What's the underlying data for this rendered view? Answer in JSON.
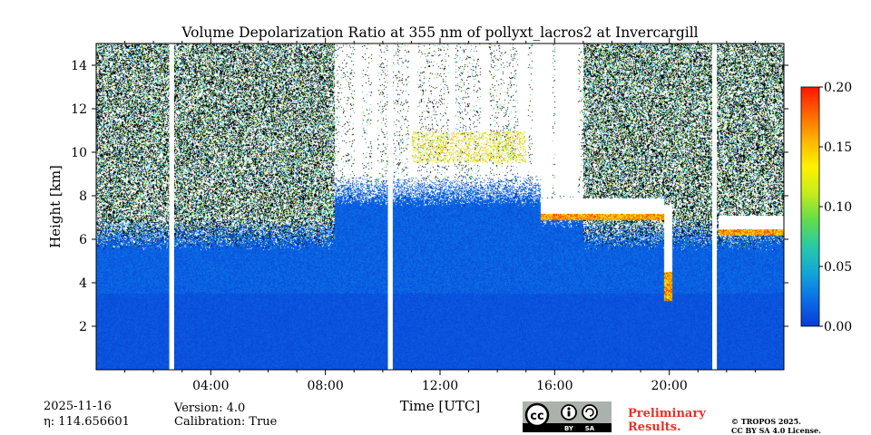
{
  "chart_data": {
    "type": "heatmap",
    "title": "Volume Depolarization Ratio at 355 nm of pollyxt_lacros2 at Invercargill",
    "xlabel": "Time [UTC]",
    "ylabel": "Height [km]",
    "xlim_hours": [
      0,
      24
    ],
    "ylim_km": [
      0,
      15
    ],
    "x_ticks": [
      {
        "hour": 4,
        "label": "04:00"
      },
      {
        "hour": 8,
        "label": "08:00"
      },
      {
        "hour": 12,
        "label": "12:00"
      },
      {
        "hour": 16,
        "label": "16:00"
      },
      {
        "hour": 20,
        "label": "20:00"
      }
    ],
    "y_ticks": [
      {
        "km": 2,
        "label": "2"
      },
      {
        "km": 4,
        "label": "4"
      },
      {
        "km": 6,
        "label": "6"
      },
      {
        "km": 8,
        "label": "8"
      },
      {
        "km": 10,
        "label": "10"
      },
      {
        "km": 12,
        "label": "12"
      },
      {
        "km": 14,
        "label": "14"
      }
    ],
    "colorbar": {
      "min": 0.0,
      "max": 0.2,
      "ticks": [
        {
          "value": 0.0,
          "label": "0.00"
        },
        {
          "value": 0.05,
          "label": "0.05"
        },
        {
          "value": 0.1,
          "label": "0.10"
        },
        {
          "value": 0.15,
          "label": "0.15"
        },
        {
          "value": 0.2,
          "label": "0.20"
        }
      ],
      "colors": [
        "#0a3cd6",
        "#0a6ee6",
        "#12a6d8",
        "#29c9a8",
        "#62dc4a",
        "#c4ec1c",
        "#fff200",
        "#ffb400",
        "#ff6400",
        "#ff1400"
      ]
    },
    "data_gaps_hours": [
      [
        2.55,
        2.72
      ],
      [
        10.18,
        10.35
      ],
      [
        21.5,
        21.66
      ]
    ],
    "cloud_layers": [
      {
        "start_hour": 15.5,
        "end_hour": 19.8,
        "base_km": 6.9,
        "top_km": 7.9
      },
      {
        "start_hour": 19.8,
        "end_hour": 20.1,
        "base_km": 3.2,
        "top_km": 7.6
      },
      {
        "start_hour": 21.7,
        "end_hour": 24.0,
        "base_km": 6.2,
        "top_km": 7.1
      }
    ]
  },
  "footer": {
    "date": "2025-11-16",
    "eta": "η: 114.656601",
    "version": "Version: 4.0",
    "calibration": "Calibration: True",
    "preliminary_1": "Preliminary",
    "preliminary_2": "Results.",
    "copyright": "© TROPOS 2025.",
    "license": "CC BY SA 4.0 License.",
    "cc_logo_text": "cc",
    "cc_by": "BY",
    "cc_sa": "SA"
  }
}
